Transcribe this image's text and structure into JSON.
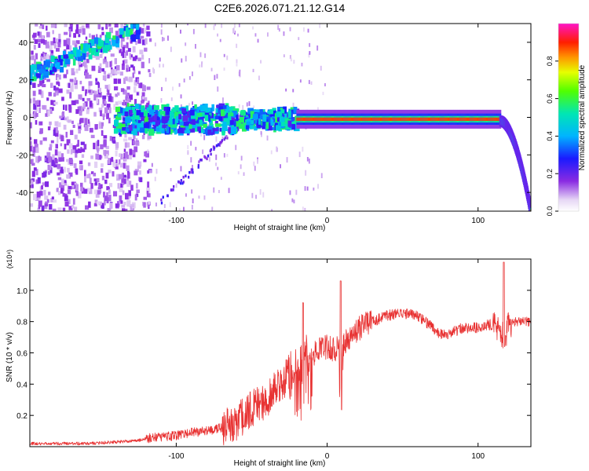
{
  "title": "C2E6.2026.071.21.12.G14",
  "colors": {
    "snr_line": "#e83232",
    "axis": "#000000",
    "background": "#ffffff"
  },
  "chart_data": [
    {
      "type": "heatmap",
      "xlabel": "Height of straight line (km)",
      "ylabel": "Frequency (Hz)",
      "xlim": [
        -197,
        135
      ],
      "ylim": [
        -50,
        50
      ],
      "x_ticks": [
        -100,
        0,
        100
      ],
      "x_tick_labels": [
        "-100",
        "0",
        "100"
      ],
      "y_ticks": [
        -40,
        -20,
        0,
        20,
        40
      ],
      "y_tick_labels": [
        "-40",
        "-20",
        "0",
        "20",
        "40"
      ],
      "colorbar": {
        "label": "Normalized spectral amplitude",
        "range": [
          0,
          1
        ],
        "ticks": [
          0.0,
          0.2,
          0.4,
          0.6,
          0.8
        ],
        "tick_labels": [
          "0.0",
          "0.2",
          "0.4",
          "0.6",
          "0.8"
        ],
        "colormap": "rainbow (white to purple to blue to cyan to green to yellow to red to magenta)"
      },
      "features": [
        {
          "name": "main Doppler line",
          "x_range": [
            -140,
            115
          ],
          "frequency_hz": -1,
          "amplitude": "0.8-0.95 from -20 km onwards, scattered 0.3-0.6 before"
        },
        {
          "name": "setting tail",
          "x_range": [
            115,
            135
          ],
          "frequency_hz_start": -2,
          "frequency_hz_end": -50
        },
        {
          "name": "upper ghost streak",
          "x_range": [
            -197,
            -125
          ],
          "frequency_hz_start": 22,
          "frequency_hz_end": 47
        },
        {
          "name": "lower ghost streak",
          "x_range": [
            -110,
            -60
          ],
          "frequency_hz_start": -45,
          "frequency_hz_end": -5
        }
      ]
    },
    {
      "type": "line",
      "xlabel": "Height of straight line (km)",
      "ylabel": "SNR (10 * v/v)",
      "y_multiplier": "(x10⁴)",
      "xlim": [
        -197,
        135
      ],
      "ylim": [
        0,
        1.2
      ],
      "x_ticks": [
        -100,
        0,
        100
      ],
      "x_tick_labels": [
        "-100",
        "0",
        "100"
      ],
      "y_ticks": [
        0.2,
        0.4,
        0.6,
        0.8,
        1.0
      ],
      "y_tick_labels": [
        "0.2",
        "0.4",
        "0.6",
        "0.8",
        "1.0"
      ],
      "series": [
        {
          "name": "SNR",
          "x": [
            -197,
            -180,
            -160,
            -140,
            -125,
            -115,
            -100,
            -90,
            -80,
            -70,
            -60,
            -55,
            -50,
            -45,
            -40,
            -35,
            -30,
            -25,
            -20,
            -15,
            -10,
            -5,
            0,
            5,
            10,
            15,
            20,
            25,
            30,
            40,
            50,
            60,
            65,
            70,
            75,
            80,
            85,
            90,
            100,
            105,
            110,
            115,
            118,
            120,
            125,
            130,
            135
          ],
          "values": [
            0.02,
            0.02,
            0.02,
            0.03,
            0.04,
            0.06,
            0.07,
            0.09,
            0.1,
            0.12,
            0.16,
            0.2,
            0.24,
            0.27,
            0.3,
            0.36,
            0.4,
            0.48,
            0.55,
            0.6,
            0.58,
            0.62,
            0.64,
            0.62,
            0.65,
            0.7,
            0.75,
            0.78,
            0.8,
            0.84,
            0.85,
            0.84,
            0.8,
            0.76,
            0.72,
            0.72,
            0.74,
            0.76,
            0.76,
            0.78,
            0.78,
            0.72,
            0.7,
            0.78,
            0.8,
            0.8,
            0.8
          ]
        }
      ],
      "annotations": [
        {
          "x": -16,
          "value": 0.92,
          "text": "spike"
        },
        {
          "x": 9,
          "value": 1.06,
          "text": "spike"
        },
        {
          "x": 117,
          "value": 1.18,
          "text": "spike"
        }
      ]
    }
  ]
}
